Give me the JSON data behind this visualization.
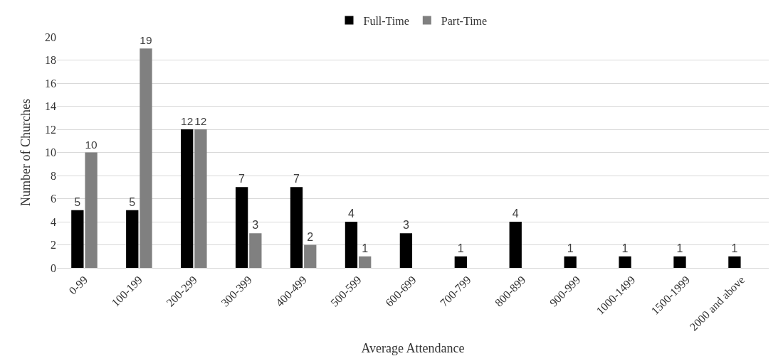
{
  "chart_data": {
    "type": "bar",
    "xlabel": "Average Attendance",
    "ylabel": "Number of Churches",
    "categories": [
      "0-99",
      "100-199",
      "200-299",
      "300-399",
      "400-499",
      "500-599",
      "600-699",
      "700-799",
      "800-899",
      "900-999",
      "1000-1499",
      "1500-1999",
      "2000 and above"
    ],
    "series": [
      {
        "name": "Full-Time",
        "color": "#000000",
        "values": [
          5,
          5,
          12,
          7,
          7,
          4,
          3,
          1,
          4,
          1,
          1,
          1,
          1
        ]
      },
      {
        "name": "Part-Time",
        "color": "#808080",
        "values": [
          10,
          19,
          12,
          3,
          2,
          1,
          null,
          null,
          null,
          null,
          null,
          null,
          null
        ]
      }
    ],
    "ylim": [
      0,
      20
    ],
    "yticks": [
      0,
      2,
      4,
      6,
      8,
      10,
      12,
      14,
      16,
      18,
      20
    ],
    "grid": "y",
    "legend": "top",
    "data_labels": true
  }
}
